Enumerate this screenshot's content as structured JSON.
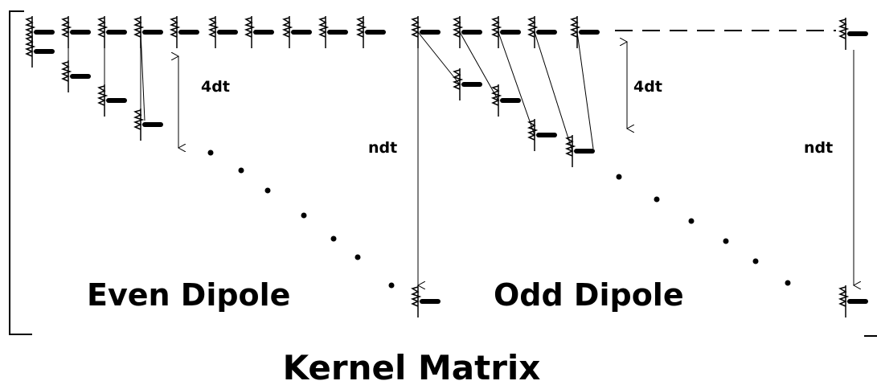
{
  "even_dipole": {
    "label": "Even Dipole",
    "spacing_label": "4dt",
    "shift_label": "ndt"
  },
  "odd_dipole": {
    "label": "Odd Dipole",
    "spacing_label": "4dt",
    "shift_label": "ndt"
  },
  "title": "Kernel Matrix"
}
